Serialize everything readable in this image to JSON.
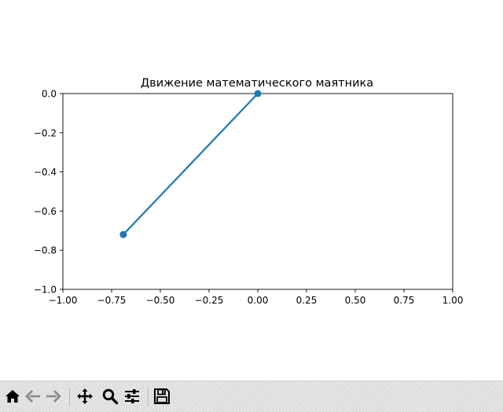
{
  "chart_data": {
    "type": "line",
    "title": "Движение математического маятника",
    "xlim": [
      -1.0,
      1.0
    ],
    "ylim": [
      -1.0,
      0.0
    ],
    "x_ticks": [
      "−1.00",
      "−0.75",
      "−0.50",
      "−0.25",
      "0.00",
      "0.25",
      "0.50",
      "0.75",
      "1.00"
    ],
    "x_tick_values": [
      -1.0,
      -0.75,
      -0.5,
      -0.25,
      0.0,
      0.25,
      0.5,
      0.75,
      1.0
    ],
    "y_ticks": [
      "0.0",
      "−0.2",
      "−0.4",
      "−0.6",
      "−0.8",
      "−1.0"
    ],
    "y_tick_values": [
      0.0,
      -0.2,
      -0.4,
      -0.6,
      -0.8,
      -1.0
    ],
    "series": [
      {
        "x": [
          0.0,
          -0.69
        ],
        "y": [
          0.0,
          -0.72
        ],
        "color": "#1f77b4",
        "marker": "o"
      }
    ],
    "grid": false
  },
  "toolbar": {
    "buttons": [
      {
        "id": "home",
        "icon": "home-icon"
      },
      {
        "id": "back",
        "icon": "arrow-left-icon"
      },
      {
        "id": "forward",
        "icon": "arrow-right-icon"
      },
      {
        "id": "pan",
        "icon": "move-icon"
      },
      {
        "id": "zoom",
        "icon": "magnifier-icon"
      },
      {
        "id": "configure",
        "icon": "sliders-icon"
      },
      {
        "id": "save",
        "icon": "floppy-disk-icon"
      }
    ]
  }
}
